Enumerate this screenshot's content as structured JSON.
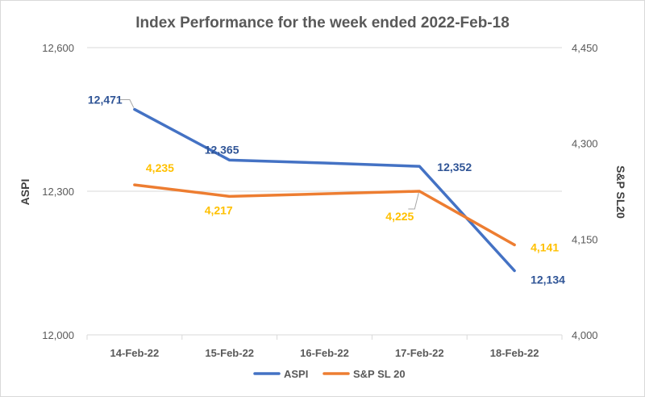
{
  "chart_data": {
    "type": "line",
    "title": "Index Performance for the week ended 2022-Feb-18",
    "categories": [
      "14-Feb-22",
      "15-Feb-22",
      "16-Feb-22",
      "17-Feb-22",
      "18-Feb-22"
    ],
    "series": [
      {
        "name": "ASPI",
        "axis": "left",
        "color": "#4472c4",
        "label_color": "#2f5496",
        "values": [
          12471,
          12365,
          12359,
          12352,
          12134
        ],
        "labels": [
          "12,471",
          "12,365",
          "",
          "12,352",
          "12,134"
        ]
      },
      {
        "name": "S&P SL 20",
        "axis": "right",
        "color": "#ed7d31",
        "label_color": "#ffc000",
        "values": [
          4235,
          4217,
          4221,
          4225,
          4141
        ],
        "labels": [
          "4,235",
          "4,217",
          "",
          "4,225",
          "4,141"
        ]
      }
    ],
    "y_left": {
      "label": "ASPI",
      "ylim": [
        12000,
        12600
      ],
      "ticks": [
        12000,
        12300,
        12600
      ],
      "tick_labels": [
        "12,000",
        "12,300",
        "12,600"
      ]
    },
    "y_right": {
      "label": "S&P SL20",
      "ylim": [
        4000,
        4450
      ],
      "ticks": [
        4000,
        4150,
        4300,
        4450
      ],
      "tick_labels": [
        "4,000",
        "4,150",
        "4,300",
        "4,450"
      ]
    },
    "grid": true,
    "legend": "bottom"
  }
}
